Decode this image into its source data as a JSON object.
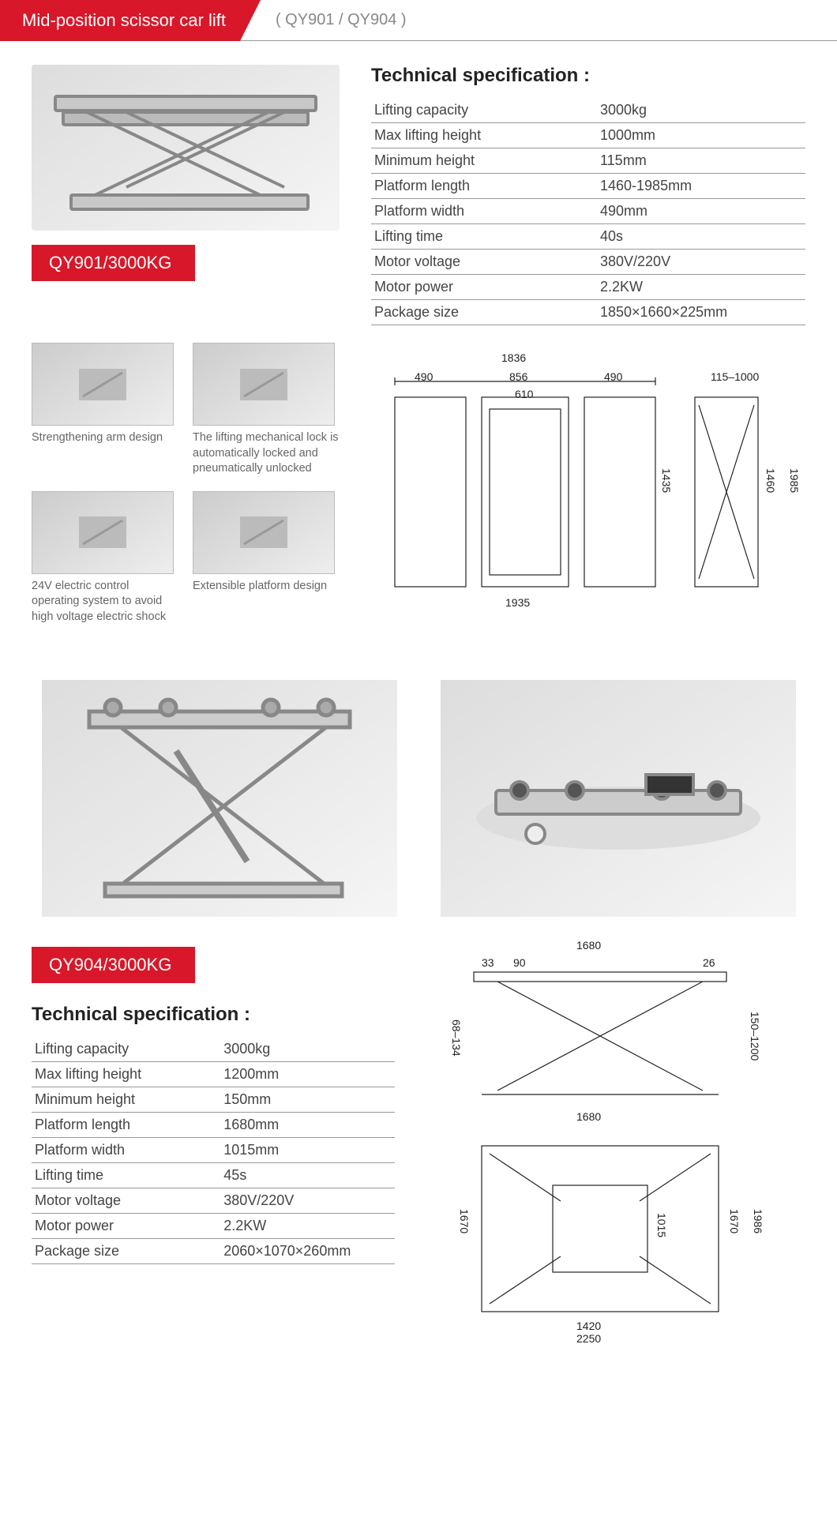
{
  "header": {
    "title": "Mid-position scissor car lift",
    "models": "( QY901 /  QY904 )"
  },
  "colors": {
    "accent": "#d8182a",
    "border": "#999999",
    "text": "#333333",
    "muted": "#888888"
  },
  "product1": {
    "badge": "QY901/3000KG",
    "spec_title": "Technical specification :",
    "specs": [
      {
        "label": "Lifting capacity",
        "value": "3000kg"
      },
      {
        "label": "Max lifting height",
        "value": "1000mm"
      },
      {
        "label": "Minimum height",
        "value": "115mm"
      },
      {
        "label": "Platform length",
        "value": "1460-1985mm"
      },
      {
        "label": "Platform width",
        "value": "490mm"
      },
      {
        "label": "Lifting time",
        "value": "40s"
      },
      {
        "label": "Motor voltage",
        "value": "380V/220V"
      },
      {
        "label": "Motor power",
        "value": "2.2KW"
      },
      {
        "label": "Package size",
        "value": "1850×1660×225mm"
      }
    ],
    "features": [
      {
        "caption": "Strengthening arm design"
      },
      {
        "caption": "The lifting mechanical lock is automatically locked and pneumatically unlocked"
      },
      {
        "caption": "24V electric control operating system to avoid high voltage electric shock"
      },
      {
        "caption": "Extensible platform design"
      }
    ],
    "diagram": {
      "top_total": "1836",
      "top_left": "490",
      "top_mid": "856",
      "top_right": "490",
      "top_inner": "610",
      "height_range": "115–1000",
      "side_h1": "1435",
      "side_h2": "1460",
      "side_h3": "1985",
      "bottom_total": "1935"
    }
  },
  "product2": {
    "badge": "QY904/3000KG",
    "spec_title": "Technical specification :",
    "specs": [
      {
        "label": "Lifting capacity",
        "value": "3000kg"
      },
      {
        "label": "Max lifting height",
        "value": "1200mm"
      },
      {
        "label": "Minimum height",
        "value": "150mm"
      },
      {
        "label": "Platform length",
        "value": "1680mm"
      },
      {
        "label": "Platform width",
        "value": "1015mm"
      },
      {
        "label": "Lifting time",
        "value": "45s"
      },
      {
        "label": "Motor voltage",
        "value": "380V/220V"
      },
      {
        "label": "Motor power",
        "value": "2.2KW"
      },
      {
        "label": "Package size",
        "value": "2060×1070×260mm"
      }
    ],
    "diagram": {
      "top_width": "1680",
      "top_small1": "33",
      "top_small2": "90",
      "top_small3": "26",
      "left_range": "68–134",
      "right_range": "150–1200",
      "mid_width": "1680",
      "plan_h1": "1670",
      "plan_h2": "1015",
      "plan_h3": "1670",
      "plan_h4": "1986",
      "bottom_w1": "1420",
      "bottom_w2": "2250"
    }
  }
}
